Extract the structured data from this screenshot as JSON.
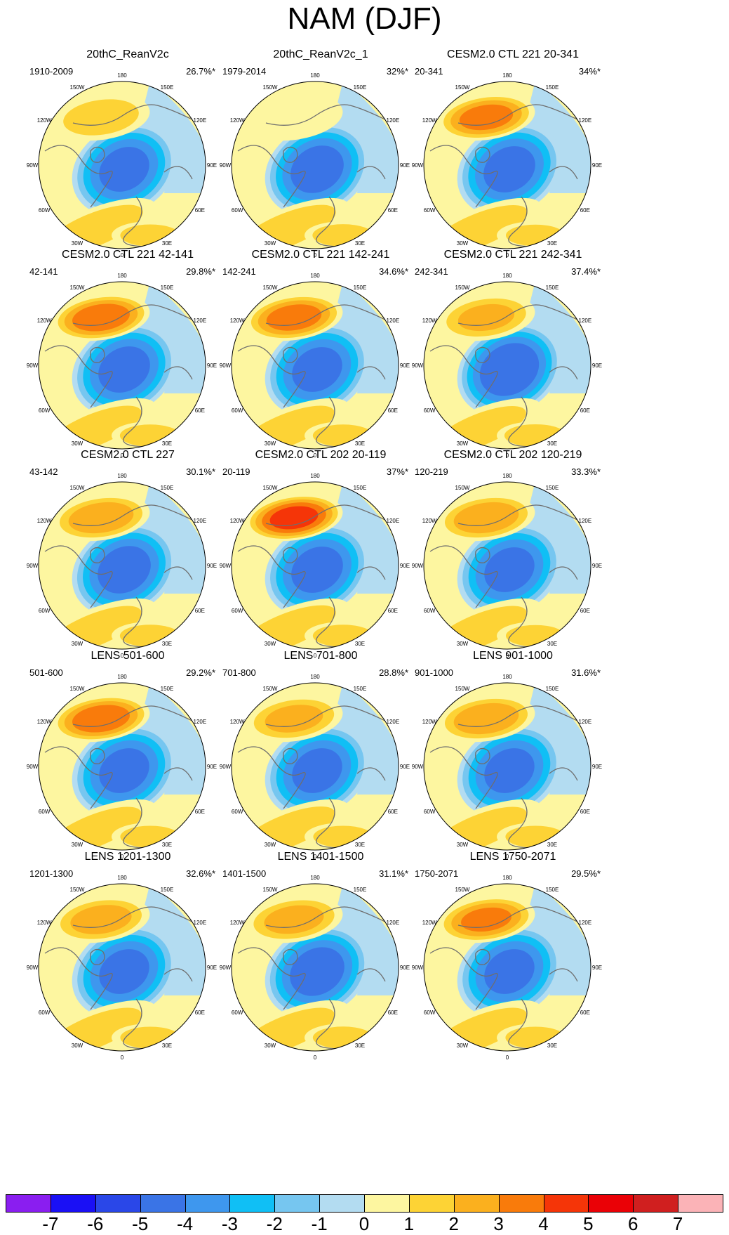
{
  "title": "NAM (DJF)",
  "longitude_labels": [
    "180",
    "150E",
    "120E",
    "90E",
    "60E",
    "30E",
    "0",
    "30W",
    "60W",
    "90W",
    "120W",
    "150W"
  ],
  "panels": [
    {
      "title": "20thC_ReanV2c",
      "period": "1910-2009",
      "percent": "26.7%*",
      "pos_peak": 2.5,
      "neg_peak": -5.2,
      "atl_peak": 2.6,
      "eu_peak": 2.5
    },
    {
      "title": "20thC_ReanV2c_1",
      "period": "1979-2014",
      "percent": "32%*",
      "pos_peak": 1.6,
      "neg_peak": -5.4,
      "atl_peak": 2.6,
      "eu_peak": 2.7
    },
    {
      "title": "CESM2.0 CTL 221 20-341",
      "period": "20-341",
      "percent": "34%*",
      "pos_peak": 4.3,
      "neg_peak": -5.3,
      "atl_peak": 2.5,
      "eu_peak": 2.4
    },
    {
      "title": "CESM2.0 CTL 221 42-141",
      "period": "42-141",
      "percent": "29.8%*",
      "pos_peak": 4.6,
      "neg_peak": -5.3,
      "atl_peak": 2.4,
      "eu_peak": 2.6
    },
    {
      "title": "CESM2.0 CTL 221 142-241",
      "period": "142-241",
      "percent": "34.6%*",
      "pos_peak": 4.4,
      "neg_peak": -5.2,
      "atl_peak": 2.4,
      "eu_peak": 2.6
    },
    {
      "title": "CESM2.0 CTL 221 242-341",
      "period": "242-341",
      "percent": "37.4%*",
      "pos_peak": 3.0,
      "neg_peak": -5.9,
      "atl_peak": 2.3,
      "eu_peak": 2.8
    },
    {
      "title": "CESM2.0 CTL 227",
      "period": "43-142",
      "percent": "30.1%*",
      "pos_peak": 3.6,
      "neg_peak": -5.4,
      "atl_peak": 2.4,
      "eu_peak": 2.6
    },
    {
      "title": "CESM2.0 CTL 202 20-119",
      "period": "20-119",
      "percent": "37%*",
      "pos_peak": 5.3,
      "neg_peak": -5.3,
      "atl_peak": 2.6,
      "eu_peak": 2.6
    },
    {
      "title": "CESM2.0 CTL 202 120-219",
      "period": "120-219",
      "percent": "33.3%*",
      "pos_peak": 3.6,
      "neg_peak": -5.2,
      "atl_peak": 2.4,
      "eu_peak": 2.4
    },
    {
      "title": "LENS 501-600",
      "period": "501-600",
      "percent": "29.2%*",
      "pos_peak": 4.6,
      "neg_peak": -5.2,
      "atl_peak": 2.4,
      "eu_peak": 2.5
    },
    {
      "title": "LENS 701-800",
      "period": "701-800",
      "percent": "28.8%*",
      "pos_peak": 3.1,
      "neg_peak": -5.2,
      "atl_peak": 2.5,
      "eu_peak": 2.5
    },
    {
      "title": "LENS 901-1000",
      "period": "901-1000",
      "percent": "31.6%*",
      "pos_peak": 3.6,
      "neg_peak": -5.2,
      "atl_peak": 2.4,
      "eu_peak": 2.5
    },
    {
      "title": "LENS 1201-1300",
      "period": "1201-1300",
      "percent": "32.6%*",
      "pos_peak": 3.3,
      "neg_peak": -5.2,
      "atl_peak": 2.4,
      "eu_peak": 2.5
    },
    {
      "title": "LENS 1401-1500",
      "period": "1401-1500",
      "percent": "31.1%*",
      "pos_peak": 3.2,
      "neg_peak": -5.5,
      "atl_peak": 2.4,
      "eu_peak": 2.6
    },
    {
      "title": "LENS 1750-2071",
      "period": "1750-2071",
      "percent": "29.5%*",
      "pos_peak": 4.1,
      "neg_peak": -5.2,
      "atl_peak": 2.4,
      "eu_peak": 2.5
    }
  ],
  "colorbar": {
    "labels": [
      "-7",
      "-6",
      "-5",
      "-4",
      "-3",
      "-2",
      "-1",
      "0",
      "1",
      "2",
      "3",
      "4",
      "5",
      "6",
      "7"
    ],
    "colors": [
      "#8a1ef0",
      "#1a10f5",
      "#2a47e8",
      "#3a74e6",
      "#3e97ee",
      "#10bff5",
      "#76c6f0",
      "#b3dcf1",
      "#fdf6a0",
      "#fdd335",
      "#fbb01e",
      "#f97b0b",
      "#f53508",
      "#ea0106",
      "#d01f1f",
      "#fbb3b7"
    ]
  }
}
